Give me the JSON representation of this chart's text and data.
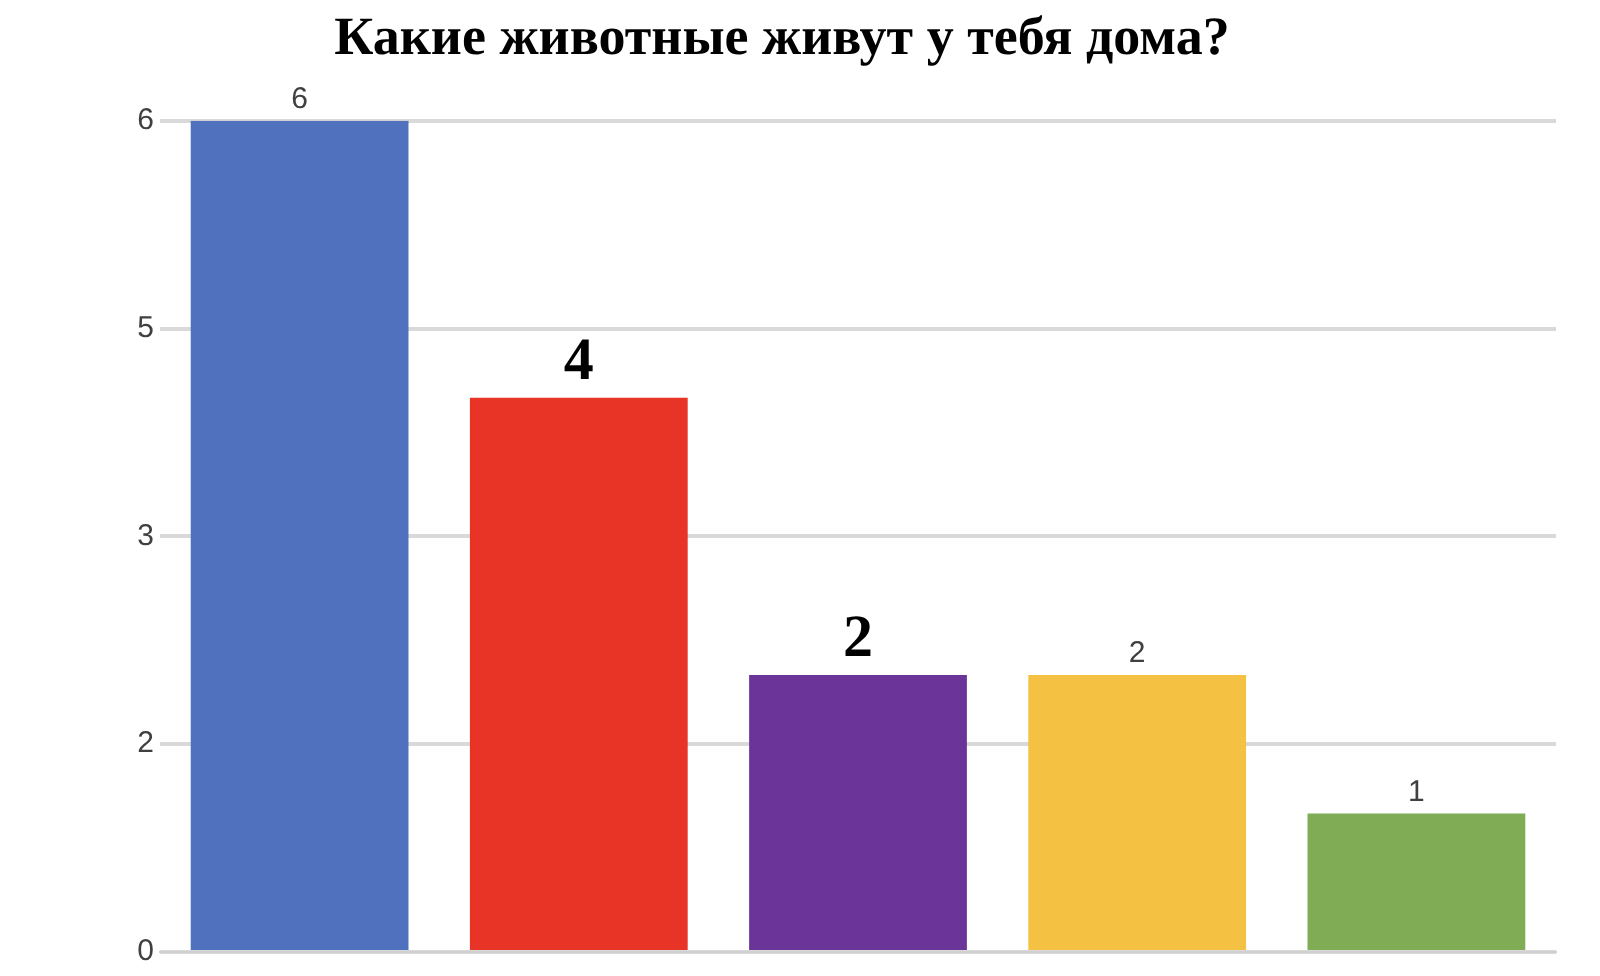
{
  "chart_data": {
    "type": "bar",
    "title": "Какие животные живут у тебя дома?",
    "categories": [
      null,
      null,
      null,
      null,
      null
    ],
    "values": [
      6,
      4,
      2,
      2,
      1
    ],
    "colors": [
      "#4f71be",
      "#e83426",
      "#6a3499",
      "#f4c143",
      "#7fac55"
    ],
    "value_labels": [
      "6",
      "4",
      "2",
      "2",
      "1"
    ],
    "ylim": [
      0,
      6
    ],
    "yticks": [
      0,
      {
        "value": 1.5,
        "label": "2"
      },
      3,
      {
        "value": 4.5,
        "label": "5"
      },
      6
    ],
    "grid": "y",
    "legend": false
  }
}
